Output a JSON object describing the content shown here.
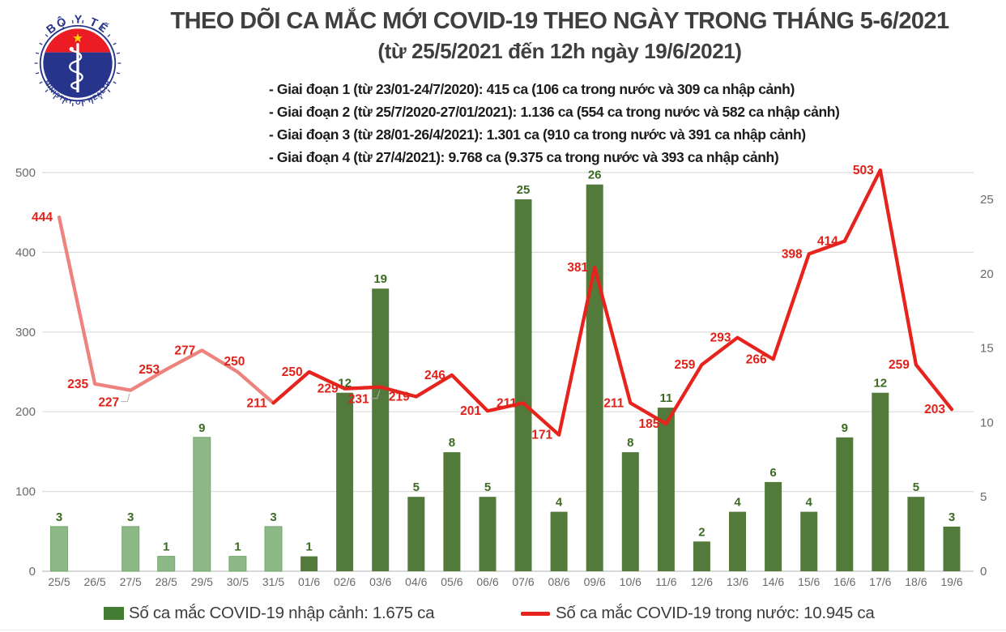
{
  "logo": {
    "top": "BỘ Y TẾ",
    "bottom": "MINISTRY OF HEALTH"
  },
  "title": {
    "line1": "THEO DÕI CA MẮC MỚI COVID-19 THEO NGÀY TRONG THÁNG 5-6/2021",
    "line2": "(từ 25/5/2021 đến 12h ngày 19/6/2021)"
  },
  "phases": [
    "- Giai đoạn 1 (từ 23/01-24/7/2020): 415 ca (106 ca trong nước và 309 ca nhập cảnh)",
    "- Giai đoạn 2 (từ 25/7/2020-27/01/2021): 1.136 ca (554 ca trong nước và 582 ca nhập cảnh)",
    "- Giai đoạn 3 (từ 28/01-26/4/2021): 1.301 ca (910 ca trong nước và 391 ca nhập cảnh)",
    "- Giai đoạn 4 (từ 27/4/2021): 9.768 ca (9.375 ca trong nước và 393 ca nhập cảnh)"
  ],
  "legend": {
    "bars": "Số ca mắc COVID-19 nhập cảnh: 1.675 ca",
    "line": "Số ca mắc COVID-19 trong nước: 10.945 ca"
  },
  "colors": {
    "bar_may": "#8db987",
    "bar_may_border": "#74a86d",
    "bar_june": "#527b3b",
    "legend_bar_swatch": "#457c33",
    "bar_label": "#3c6a22",
    "line_may": "#ee837e",
    "line_june": "#e6231c",
    "line_label": "#e0231a",
    "leader": "#b0b0b0",
    "axis_text": "#6a6a6a",
    "grid": "#dcdcdc",
    "baseline": "#c0c0c0",
    "title_text": "#3f3f3f",
    "legend_text": "#3d3d3d",
    "logo_navy": "#27348b",
    "logo_red": "#ec1c24",
    "logo_star": "#ffd400"
  },
  "chart_data": {
    "type": "bar",
    "combo": "bar+line dual axis",
    "grid": true,
    "legend_position": "bottom",
    "categories": [
      "25/5",
      "26/5",
      "27/5",
      "28/5",
      "29/5",
      "30/5",
      "31/5",
      "01/6",
      "02/6",
      "03/6",
      "04/6",
      "05/6",
      "06/6",
      "07/6",
      "08/6",
      "09/6",
      "10/6",
      "11/6",
      "12/6",
      "13/6",
      "14/6",
      "15/6",
      "16/6",
      "17/6",
      "18/6",
      "19/6"
    ],
    "series": [
      {
        "name": "Số ca mắc COVID-19 nhập cảnh",
        "type": "bar",
        "axis": "right",
        "values": [
          3,
          0,
          3,
          1,
          9,
          1,
          3,
          1,
          12,
          19,
          5,
          8,
          5,
          25,
          4,
          26,
          8,
          11,
          2,
          4,
          6,
          4,
          9,
          12,
          5,
          3
        ]
      },
      {
        "name": "Số ca mắc COVID-19 trong nước",
        "type": "line",
        "axis": "left",
        "values": [
          444,
          235,
          227,
          253,
          277,
          250,
          211,
          250,
          229,
          231,
          219,
          246,
          201,
          211,
          171,
          381,
          211,
          185,
          259,
          293,
          266,
          398,
          414,
          503,
          259,
          203
        ]
      }
    ],
    "left_axis": {
      "ticks": [
        0,
        100,
        200,
        300,
        400,
        500
      ],
      "range": [
        0,
        500
      ]
    },
    "right_axis": {
      "ticks": [
        0,
        5,
        10,
        15,
        20,
        25
      ],
      "range": [
        0,
        26.8
      ]
    },
    "may_june_split_index": 7
  }
}
